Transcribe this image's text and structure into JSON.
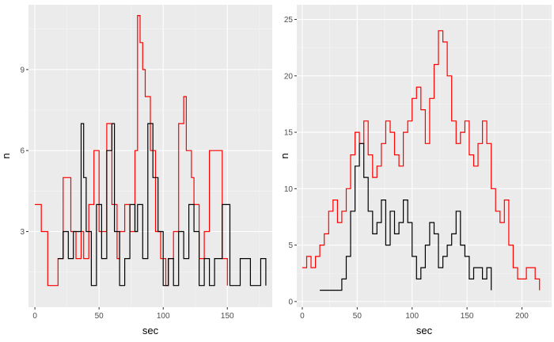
{
  "chart_data": [
    {
      "type": "line",
      "step": true,
      "xlabel": "sec",
      "ylabel": "n",
      "xlim": [
        -5,
        185
      ],
      "ylim": [
        0.2,
        11.4
      ],
      "xticks": [
        0,
        50,
        100,
        150
      ],
      "yticks": [
        3,
        6,
        9
      ],
      "grid": true,
      "series": [
        {
          "color": "#ff0000",
          "x": [
            0,
            5,
            10,
            18,
            22,
            28,
            32,
            36,
            38,
            42,
            46,
            50,
            56,
            60,
            64,
            66,
            70,
            74,
            78,
            80,
            82,
            84,
            86,
            90,
            94,
            98,
            102,
            104,
            108,
            112,
            116,
            118,
            122,
            124,
            128,
            132,
            136,
            140,
            146,
            150
          ],
          "y": [
            4,
            3,
            1,
            2,
            5,
            3,
            2,
            3,
            2,
            4,
            6,
            3,
            7,
            4,
            2,
            3,
            4,
            3,
            6,
            11,
            10,
            9,
            8,
            6,
            3,
            2,
            1,
            2,
            3,
            7,
            8,
            6,
            5,
            4,
            2,
            3,
            6,
            6,
            2,
            1
          ]
        },
        {
          "color": "#000000",
          "x": [
            18,
            22,
            26,
            30,
            36,
            38,
            40,
            44,
            48,
            52,
            56,
            60,
            62,
            66,
            70,
            74,
            78,
            80,
            84,
            88,
            92,
            96,
            100,
            104,
            108,
            112,
            116,
            120,
            124,
            128,
            132,
            136,
            140,
            146,
            152,
            160,
            168,
            176,
            180
          ],
          "y": [
            2,
            3,
            2,
            3,
            7,
            5,
            3,
            1,
            4,
            2,
            6,
            7,
            3,
            1,
            2,
            4,
            3,
            4,
            2,
            7,
            5,
            3,
            1,
            2,
            1,
            3,
            2,
            4,
            3,
            1,
            2,
            1,
            2,
            4,
            1,
            2,
            1,
            2,
            1
          ]
        }
      ]
    },
    {
      "type": "line",
      "step": true,
      "xlabel": "sec",
      "ylabel": "n",
      "xlim": [
        -5,
        227
      ],
      "ylim": [
        -0.5,
        26.3
      ],
      "xticks": [
        0,
        50,
        100,
        150,
        200
      ],
      "yticks": [
        0,
        5,
        10,
        15,
        20,
        25
      ],
      "grid": true,
      "series": [
        {
          "color": "#ff0000",
          "x": [
            0,
            4,
            8,
            12,
            16,
            20,
            24,
            28,
            32,
            36,
            40,
            44,
            48,
            52,
            56,
            60,
            64,
            68,
            72,
            76,
            80,
            84,
            88,
            92,
            96,
            100,
            104,
            108,
            112,
            116,
            120,
            124,
            128,
            132,
            136,
            140,
            144,
            148,
            152,
            156,
            160,
            164,
            168,
            172,
            176,
            180,
            184,
            188,
            192,
            196,
            200,
            204,
            208,
            212,
            216
          ],
          "y": [
            3,
            4,
            3,
            4,
            5,
            6,
            8,
            9,
            7,
            8,
            10,
            13,
            15,
            14,
            16,
            13,
            11,
            12,
            14,
            16,
            15,
            13,
            12,
            15,
            16,
            18,
            19,
            17,
            14,
            18,
            21,
            24,
            23,
            20,
            16,
            14,
            15,
            16,
            13,
            12,
            14,
            16,
            14,
            10,
            8,
            7,
            9,
            5,
            3,
            2,
            2,
            3,
            3,
            2,
            1
          ]
        },
        {
          "color": "#000000",
          "x": [
            16,
            20,
            28,
            36,
            40,
            44,
            48,
            52,
            56,
            60,
            64,
            68,
            72,
            76,
            80,
            84,
            88,
            92,
            96,
            100,
            104,
            108,
            112,
            116,
            120,
            124,
            128,
            132,
            136,
            140,
            144,
            148,
            152,
            156,
            160,
            164,
            168,
            172
          ],
          "y": [
            1,
            1,
            1,
            2,
            4,
            8,
            12,
            14,
            11,
            8,
            6,
            7,
            9,
            5,
            8,
            6,
            7,
            9,
            7,
            4,
            2,
            3,
            5,
            7,
            6,
            3,
            4,
            5,
            6,
            8,
            5,
            4,
            2,
            3,
            3,
            2,
            3,
            1
          ]
        }
      ]
    }
  ]
}
